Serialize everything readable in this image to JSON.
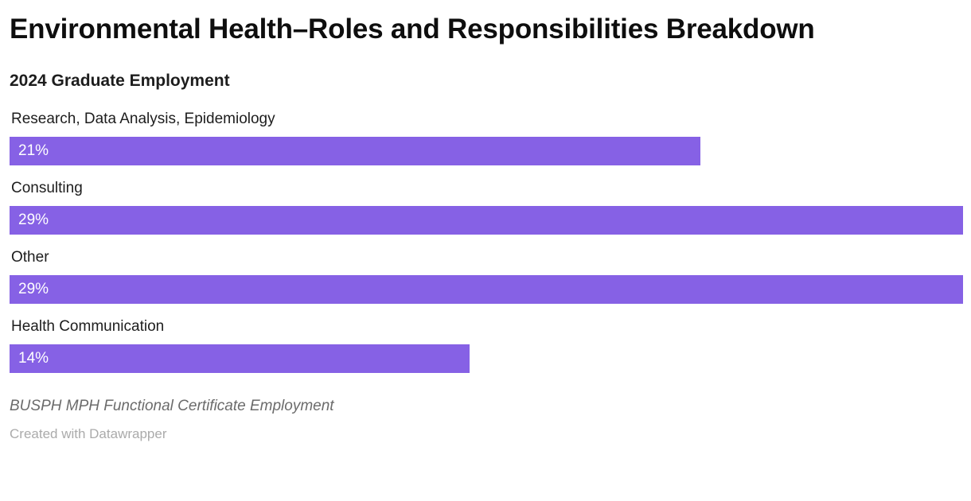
{
  "chart_data": {
    "type": "bar",
    "orientation": "horizontal",
    "title": "Environmental Health–Roles and Responsibilities Breakdown",
    "subtitle": "2024 Graduate Employment",
    "categories": [
      "Research, Data Analysis, Epidemiology",
      "Consulting",
      "Other",
      "Health Communication"
    ],
    "values": [
      21,
      29,
      29,
      14
    ],
    "value_labels": [
      "21%",
      "29%",
      "29%",
      "14%"
    ],
    "xlim": [
      0,
      29
    ],
    "bar_color": "#8661e5",
    "value_label_color": "#ffffff",
    "grid": false,
    "legend": false,
    "footer_note": "BUSPH MPH Functional Certificate Employment",
    "attribution": "Created with Datawrapper"
  }
}
